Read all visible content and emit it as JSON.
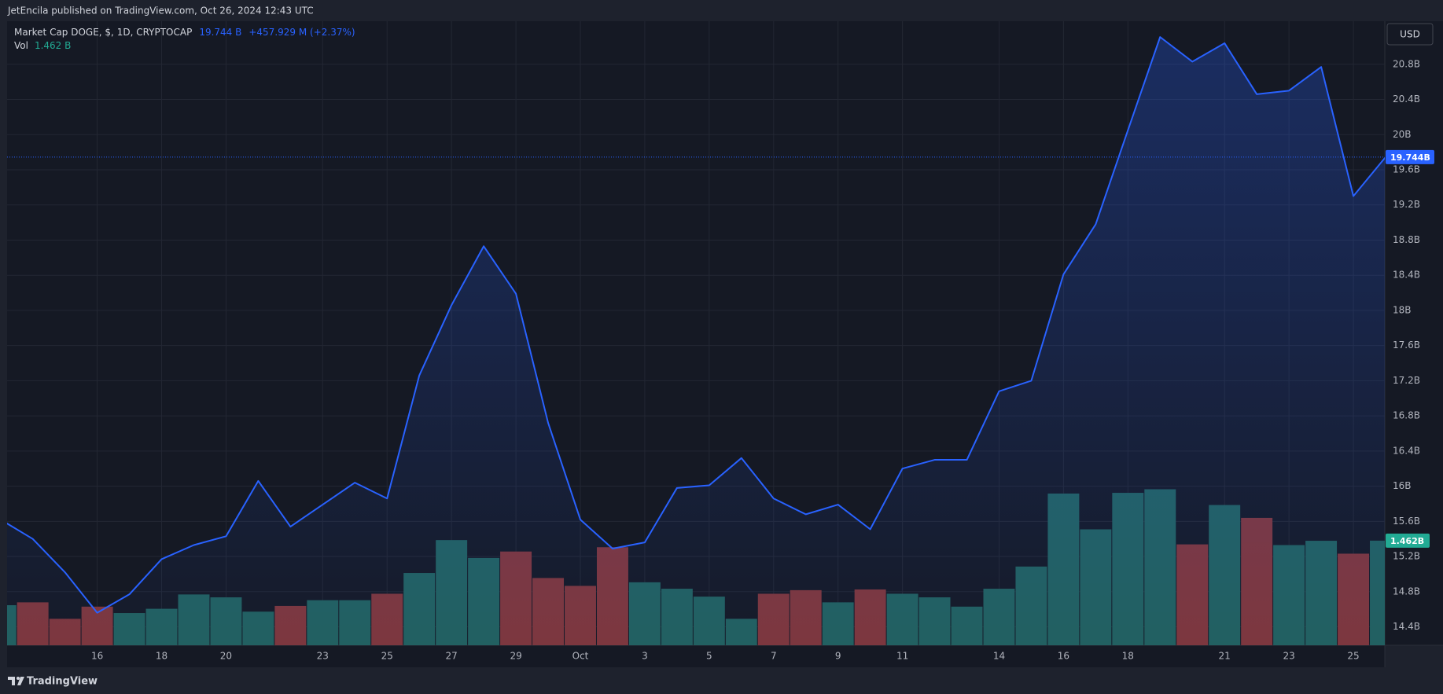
{
  "header": {
    "attribution": "JetEncila published on TradingView.com, Oct 26, 2024 12:43 UTC"
  },
  "toolbar": {
    "currency": "USD"
  },
  "footer": {
    "brand": "TradingView"
  },
  "chart_data": {
    "type": "area",
    "categories": [
      null,
      null,
      null,
      "16",
      null,
      "18",
      null,
      "20",
      null,
      null,
      "23",
      null,
      "25",
      null,
      "27",
      null,
      "29",
      null,
      "Oct",
      null,
      "3",
      null,
      "5",
      null,
      "7",
      null,
      "9",
      null,
      "11",
      null,
      null,
      "14",
      null,
      "16",
      null,
      "18",
      null,
      null,
      "21",
      null,
      "23",
      null,
      "25",
      null
    ],
    "ylim": [
      14.19,
      21.29
    ],
    "yticks": [
      {
        "value": 14.4,
        "label": "14.4B"
      },
      {
        "value": 14.8,
        "label": "14.8B"
      },
      {
        "value": 15.2,
        "label": "15.2B"
      },
      {
        "value": 15.6,
        "label": "15.6B"
      },
      {
        "value": 16,
        "label": "16B"
      },
      {
        "value": 16.4,
        "label": "16.4B"
      },
      {
        "value": 16.8,
        "label": "16.8B"
      },
      {
        "value": 17.2,
        "label": "17.2B"
      },
      {
        "value": 17.6,
        "label": "17.6B"
      },
      {
        "value": 18,
        "label": "18B"
      },
      {
        "value": 18.4,
        "label": "18.4B"
      },
      {
        "value": 18.8,
        "label": "18.8B"
      },
      {
        "value": 19.2,
        "label": "19.2B"
      },
      {
        "value": 19.6,
        "label": "19.6B"
      },
      {
        "value": 20,
        "label": "20B"
      },
      {
        "value": 20.4,
        "label": "20.4B"
      },
      {
        "value": 20.8,
        "label": "20.8B"
      }
    ],
    "grid": true,
    "series": [
      {
        "name": "Market Cap DOGE, $, 1D, CRYPTOCAP",
        "type": "area",
        "color": "#2962ff",
        "legend_value": "19.744 B",
        "legend_change": "+457.929 M (+2.37%)",
        "tag": "19.744B",
        "values": [
          15.62,
          15.4,
          15.02,
          14.56,
          14.77,
          15.17,
          15.33,
          15.43,
          16.06,
          15.54,
          15.79,
          16.04,
          15.86,
          17.26,
          18.06,
          18.73,
          18.19,
          16.72,
          15.62,
          15.29,
          15.36,
          15.98,
          16.01,
          16.32,
          15.86,
          15.68,
          15.79,
          15.51,
          16.2,
          16.3,
          16.3,
          17.08,
          17.2,
          18.41,
          18.98,
          20.05,
          21.11,
          20.83,
          21.04,
          20.46,
          20.5,
          20.77,
          19.3,
          19.744
        ]
      },
      {
        "name": "Vol",
        "type": "bar",
        "color": "#22ab94",
        "legend_value": "1.462 B",
        "tag": "1.462B",
        "values": [
          0.56,
          0.6,
          0.37,
          0.54,
          0.45,
          0.51,
          0.71,
          0.67,
          0.47,
          0.55,
          0.63,
          0.63,
          0.72,
          1.01,
          1.47,
          1.22,
          1.31,
          0.94,
          0.83,
          1.37,
          0.88,
          0.79,
          0.68,
          0.37,
          0.72,
          0.77,
          0.6,
          0.78,
          0.72,
          0.67,
          0.54,
          0.79,
          1.1,
          2.12,
          1.62,
          2.13,
          2.18,
          1.41,
          1.96,
          1.78,
          1.4,
          1.46,
          1.28,
          1.462
        ],
        "colors": [
          "#22605e",
          "#7e363b",
          "#7e363b",
          "#7e363b",
          "#22605e",
          "#22605e",
          "#22605e",
          "#22605e",
          "#22605e",
          "#7e363b",
          "#22605e",
          "#22605e",
          "#7e363b",
          "#22605e",
          "#22605e",
          "#22605e",
          "#7e363b",
          "#7e363b",
          "#7e363b",
          "#7e363b",
          "#22605e",
          "#22605e",
          "#22605e",
          "#22605e",
          "#7e363b",
          "#7e363b",
          "#22605e",
          "#7e363b",
          "#22605e",
          "#22605e",
          "#22605e",
          "#22605e",
          "#22605e",
          "#22605e",
          "#22605e",
          "#22605e",
          "#22605e",
          "#7e363b",
          "#22605e",
          "#7e363b",
          "#22605e",
          "#22605e",
          "#7e363b",
          "#22605e"
        ]
      }
    ]
  }
}
